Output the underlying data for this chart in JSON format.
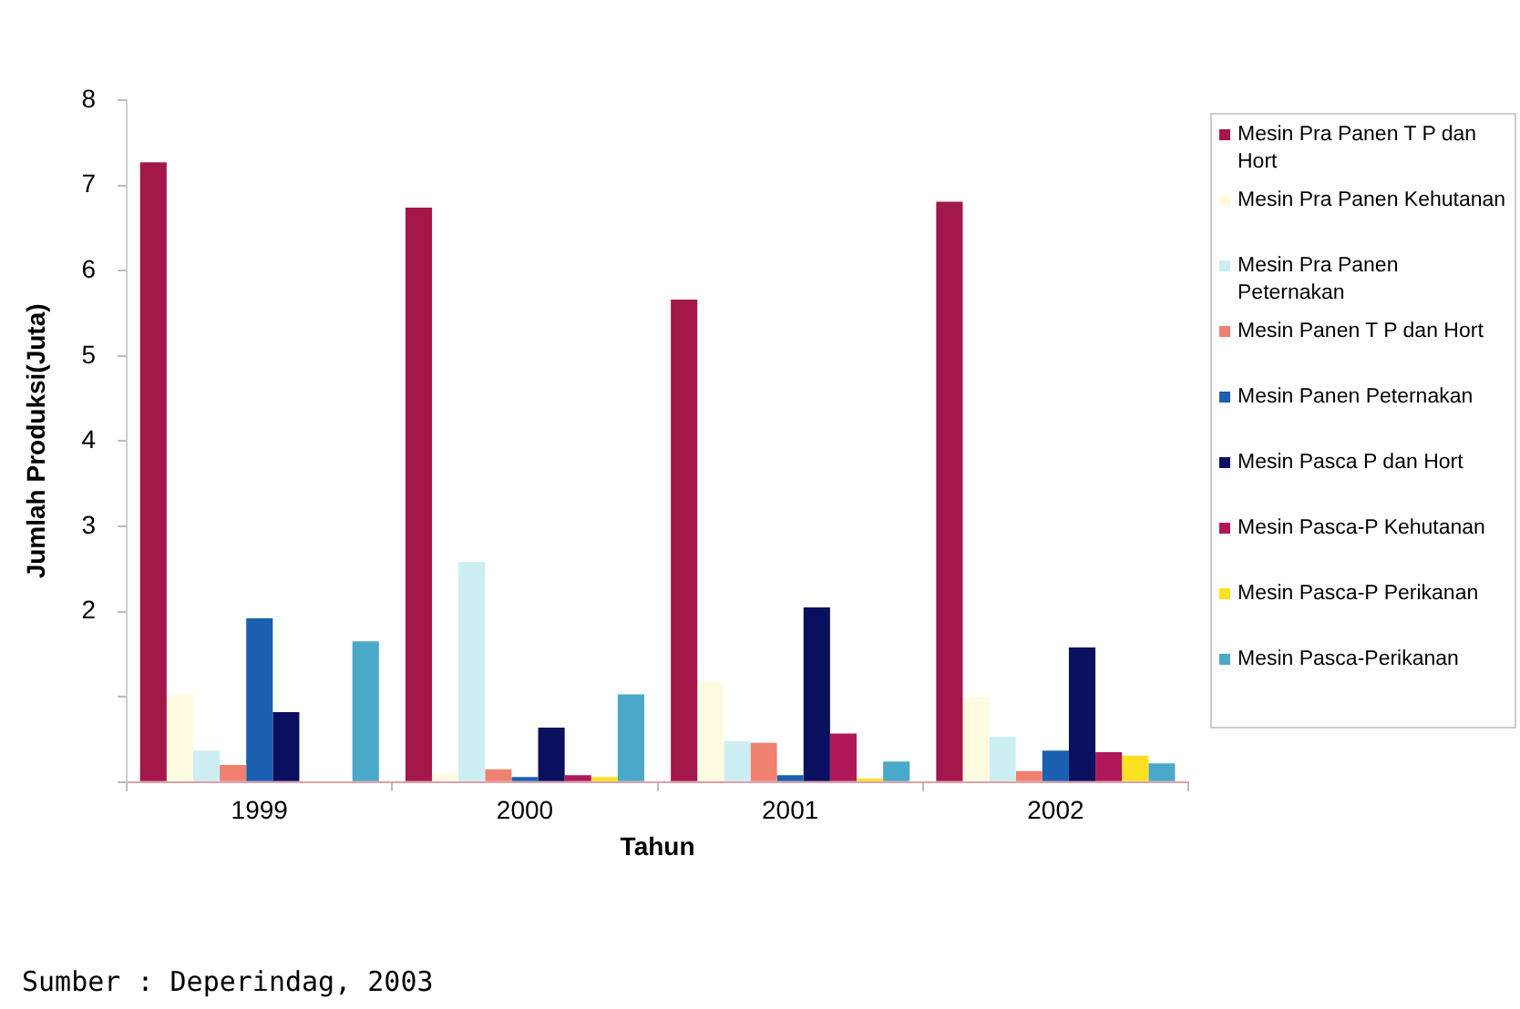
{
  "chart_data": {
    "type": "bar",
    "xlabel": "Tahun",
    "ylabel": "Jumlah Produksi(Juta)",
    "categories": [
      "1999",
      "2000",
      "2001",
      "2002"
    ],
    "series": [
      {
        "name": "Mesin Pra Panen T P dan Hort",
        "color": "#a3174a",
        "values": [
          7.27,
          6.74,
          5.66,
          6.81
        ]
      },
      {
        "name": "Mesin Pra Panen Kehutanan",
        "color": "#fffbe0",
        "values": [
          1.03,
          0.1,
          1.17,
          1.0
        ]
      },
      {
        "name": "Mesin Pra Panen Peternakan",
        "color": "#cdeef3",
        "values": [
          0.37,
          2.58,
          0.48,
          0.53
        ]
      },
      {
        "name": "Mesin Panen T P dan Hort",
        "color": "#f08070",
        "values": [
          0.2,
          0.15,
          0.46,
          0.13
        ]
      },
      {
        "name": "Mesin Panen Peternakan",
        "color": "#1a5fb0",
        "values": [
          1.92,
          0.06,
          0.08,
          0.37
        ]
      },
      {
        "name": "Mesin Pasca P dan Hort",
        "color": "#0a0f60",
        "values": [
          0.82,
          0.64,
          2.05,
          1.58
        ]
      },
      {
        "name": "Mesin Pasca-P Kehutanan",
        "color": "#b0185a",
        "values": [
          0,
          0.08,
          0.57,
          0.35
        ]
      },
      {
        "name": "Mesin Pasca-P Perikanan",
        "color": "#ffe020",
        "values": [
          0,
          0.06,
          0.04,
          0.31
        ]
      },
      {
        "name": "Mesin Pasca-Perikanan",
        "color": "#4aa8c8",
        "values": [
          1.65,
          1.03,
          0.24,
          0.22
        ]
      }
    ],
    "ylim": [
      0,
      8
    ],
    "yticks": [
      {
        "value": 0,
        "label": null
      },
      {
        "value": 1,
        "label": null
      },
      2,
      3,
      4,
      5,
      6,
      7,
      8
    ],
    "grid": false,
    "legend": "right",
    "annotations": [
      "Sumber : Deperindag, 2003"
    ]
  }
}
